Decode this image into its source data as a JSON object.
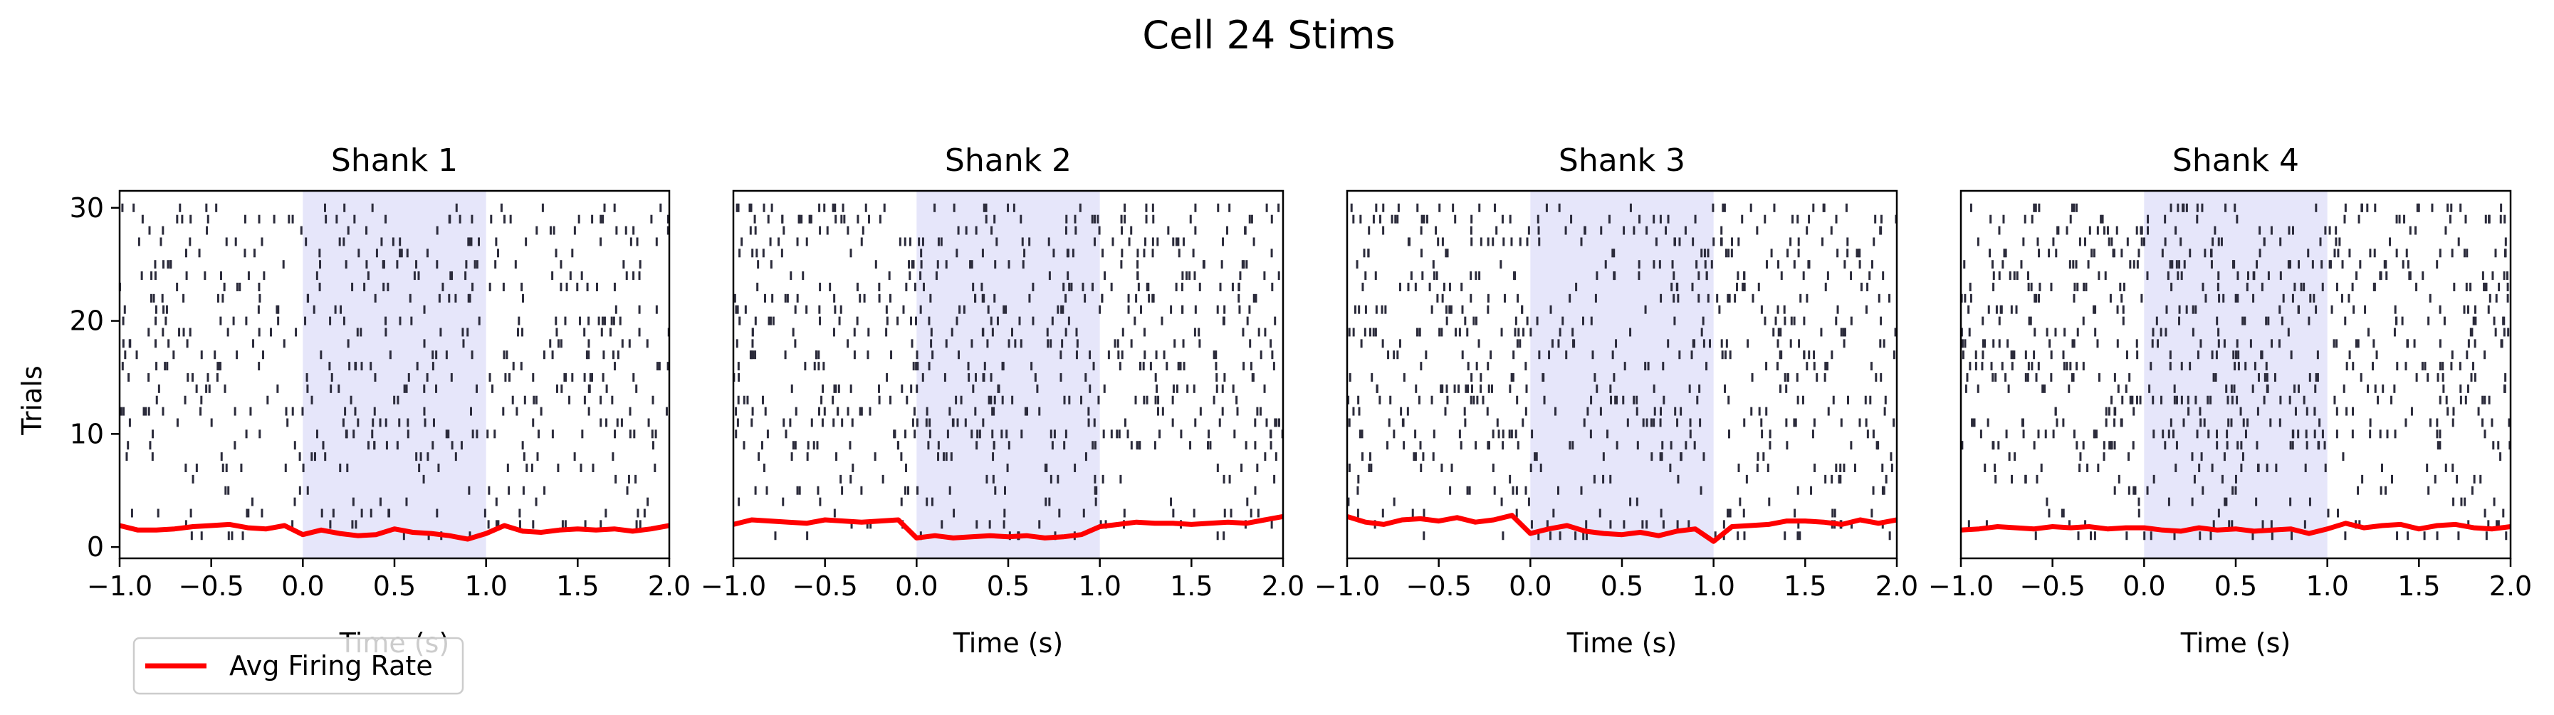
{
  "figure": {
    "title": "Cell 24 Stims",
    "ylabel": "Trials",
    "legend_label": "Avg Firing Rate"
  },
  "colors": {
    "raster": "#2b2b3b",
    "rate_line": "#ff0000",
    "stim_shade": "#e6e6fa",
    "axes": "#000000"
  },
  "chart_data": [
    {
      "type": "raster",
      "title": "Shank 1",
      "xlabel": "Time (s)",
      "ylabel": "Trials",
      "xlim": [
        -1.0,
        2.0
      ],
      "ylim": [
        -1,
        31.5
      ],
      "xticks": [
        -1.0,
        -0.5,
        0.0,
        0.5,
        1.0,
        1.5,
        2.0
      ],
      "xtick_labels": [
        "−1.0",
        "−0.5",
        "0.0",
        "0.5",
        "1.0",
        "1.5",
        "2.0"
      ],
      "yticks": [
        0,
        10,
        20,
        30
      ],
      "ytick_labels": [
        "0",
        "10",
        "20",
        "30"
      ],
      "stim_window": [
        0.0,
        1.0
      ],
      "trials": 30,
      "series": [
        {
          "name": "Avg Firing Rate",
          "x": [
            -1.0,
            -0.9,
            -0.8,
            -0.7,
            -0.6,
            -0.5,
            -0.4,
            -0.3,
            -0.2,
            -0.1,
            0.0,
            0.1,
            0.2,
            0.3,
            0.4,
            0.5,
            0.6,
            0.7,
            0.8,
            0.9,
            1.0,
            1.1,
            1.2,
            1.3,
            1.4,
            1.5,
            1.6,
            1.7,
            1.8,
            1.9,
            2.0
          ],
          "y": [
            1.9,
            1.5,
            1.5,
            1.6,
            1.8,
            1.9,
            2.0,
            1.7,
            1.6,
            1.9,
            1.1,
            1.5,
            1.2,
            1.0,
            1.1,
            1.6,
            1.3,
            1.2,
            1.0,
            0.7,
            1.2,
            1.9,
            1.4,
            1.3,
            1.5,
            1.6,
            1.5,
            1.6,
            1.4,
            1.6,
            1.9
          ]
        }
      ]
    },
    {
      "type": "raster",
      "title": "Shank 2",
      "xlabel": "Time (s)",
      "xlim": [
        -1.0,
        2.0
      ],
      "ylim": [
        -1,
        31.5
      ],
      "xticks": [
        -1.0,
        -0.5,
        0.0,
        0.5,
        1.0,
        1.5,
        2.0
      ],
      "xtick_labels": [
        "−1.0",
        "−0.5",
        "0.0",
        "0.5",
        "1.0",
        "1.5",
        "2.0"
      ],
      "stim_window": [
        0.0,
        1.0
      ],
      "trials": 30,
      "series": [
        {
          "name": "Avg Firing Rate",
          "x": [
            -1.0,
            -0.9,
            -0.8,
            -0.7,
            -0.6,
            -0.5,
            -0.4,
            -0.3,
            -0.2,
            -0.1,
            0.0,
            0.1,
            0.2,
            0.3,
            0.4,
            0.5,
            0.6,
            0.7,
            0.8,
            0.9,
            1.0,
            1.1,
            1.2,
            1.3,
            1.4,
            1.5,
            1.6,
            1.7,
            1.8,
            1.9,
            2.0
          ],
          "y": [
            2.0,
            2.4,
            2.3,
            2.2,
            2.1,
            2.4,
            2.3,
            2.2,
            2.3,
            2.4,
            0.8,
            1.0,
            0.8,
            0.9,
            1.0,
            0.9,
            1.0,
            0.8,
            0.9,
            1.1,
            1.8,
            2.0,
            2.2,
            2.1,
            2.1,
            2.0,
            2.1,
            2.2,
            2.1,
            2.4,
            2.7
          ]
        }
      ]
    },
    {
      "type": "raster",
      "title": "Shank 3",
      "xlabel": "Time (s)",
      "xlim": [
        -1.0,
        2.0
      ],
      "ylim": [
        -1,
        31.5
      ],
      "xticks": [
        -1.0,
        -0.5,
        0.0,
        0.5,
        1.0,
        1.5,
        2.0
      ],
      "xtick_labels": [
        "−1.0",
        "−0.5",
        "0.0",
        "0.5",
        "1.0",
        "1.5",
        "2.0"
      ],
      "stim_window": [
        0.0,
        1.0
      ],
      "trials": 30,
      "series": [
        {
          "name": "Avg Firing Rate",
          "x": [
            -1.0,
            -0.9,
            -0.8,
            -0.7,
            -0.6,
            -0.5,
            -0.4,
            -0.3,
            -0.2,
            -0.1,
            0.0,
            0.1,
            0.2,
            0.3,
            0.4,
            0.5,
            0.6,
            0.7,
            0.8,
            0.9,
            1.0,
            1.1,
            1.2,
            1.3,
            1.4,
            1.5,
            1.6,
            1.7,
            1.8,
            1.9,
            2.0
          ],
          "y": [
            2.7,
            2.2,
            2.0,
            2.4,
            2.5,
            2.3,
            2.6,
            2.2,
            2.4,
            2.8,
            1.2,
            1.6,
            1.9,
            1.4,
            1.2,
            1.1,
            1.3,
            1.0,
            1.4,
            1.6,
            0.5,
            1.8,
            1.9,
            2.0,
            2.3,
            2.3,
            2.2,
            2.0,
            2.4,
            2.1,
            2.4
          ]
        }
      ]
    },
    {
      "type": "raster",
      "title": "Shank 4",
      "xlabel": "Time (s)",
      "xlim": [
        -1.0,
        2.0
      ],
      "ylim": [
        -1,
        31.5
      ],
      "xticks": [
        -1.0,
        -0.5,
        0.0,
        0.5,
        1.0,
        1.5,
        2.0
      ],
      "xtick_labels": [
        "−1.0",
        "−0.5",
        "0.0",
        "0.5",
        "1.0",
        "1.5",
        "2.0"
      ],
      "stim_window": [
        0.0,
        1.0
      ],
      "trials": 30,
      "series": [
        {
          "name": "Avg Firing Rate",
          "x": [
            -1.0,
            -0.9,
            -0.8,
            -0.7,
            -0.6,
            -0.5,
            -0.4,
            -0.3,
            -0.2,
            -0.1,
            0.0,
            0.1,
            0.2,
            0.3,
            0.4,
            0.5,
            0.6,
            0.7,
            0.8,
            0.9,
            1.0,
            1.1,
            1.2,
            1.3,
            1.4,
            1.5,
            1.6,
            1.7,
            1.8,
            1.9,
            2.0
          ],
          "y": [
            1.5,
            1.6,
            1.8,
            1.7,
            1.6,
            1.8,
            1.7,
            1.8,
            1.6,
            1.7,
            1.7,
            1.5,
            1.4,
            1.7,
            1.5,
            1.6,
            1.4,
            1.5,
            1.6,
            1.2,
            1.6,
            2.1,
            1.7,
            1.9,
            2.0,
            1.6,
            1.9,
            2.0,
            1.7,
            1.6,
            1.8
          ]
        }
      ]
    }
  ]
}
